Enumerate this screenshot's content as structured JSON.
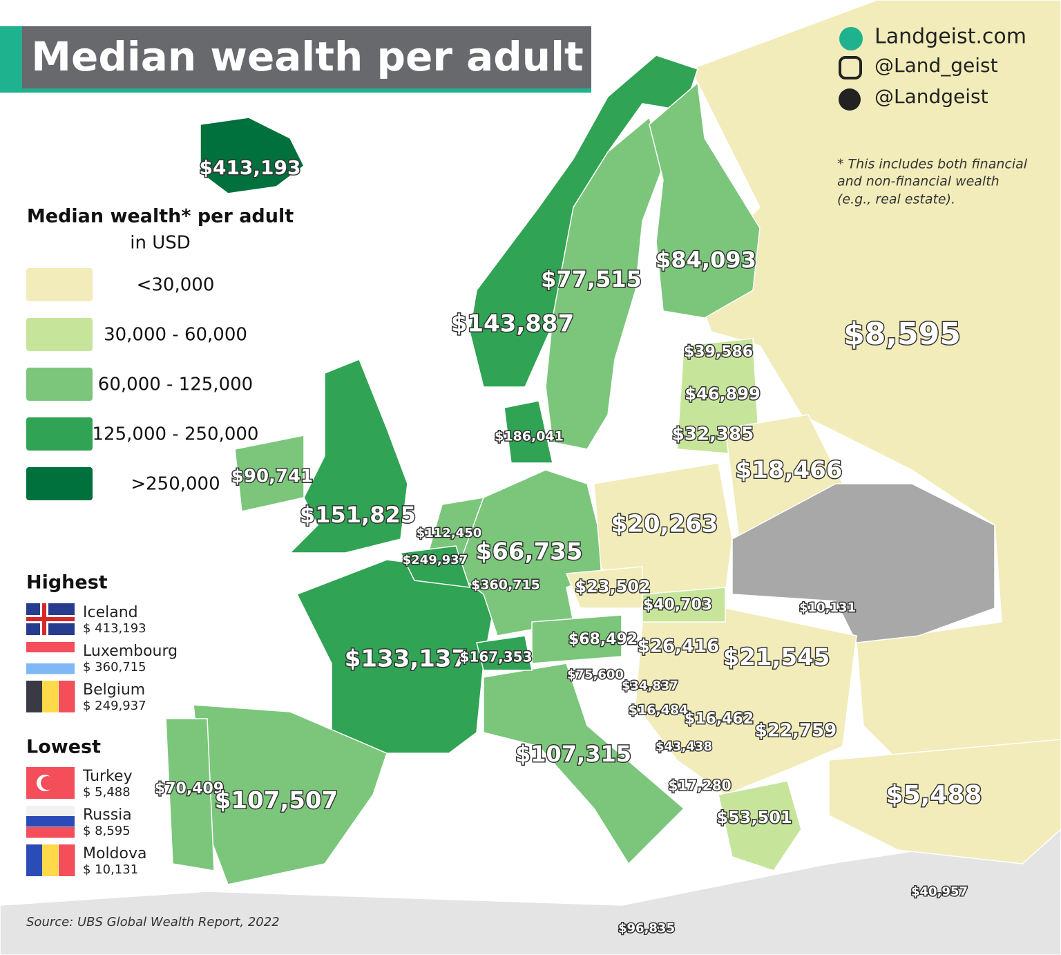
{
  "header": {
    "title": "Median wealth per adult"
  },
  "social": [
    "Landgeist.com",
    "@Land_geist",
    "@Landgeist"
  ],
  "note": [
    "* This includes both financial",
    "and non-financial wealth",
    "(e.g., real estate)."
  ],
  "legend": {
    "title": "Median wealth* per adult",
    "subtitle": "in USD",
    "items": [
      {
        "label": "<30,000",
        "color": "#f1ecb9"
      },
      {
        "label": "30,000 - 60,000",
        "color": "#c6e59b"
      },
      {
        "label": "60,000 - 125,000",
        "color": "#7bc67b"
      },
      {
        "label": "125,000 - 250,000",
        "color": "#30a354"
      },
      {
        "label": ">250,000",
        "color": "#00703c"
      }
    ]
  },
  "highest": {
    "title": "Highest",
    "items": [
      {
        "country": "Iceland",
        "value": "$ 413,193"
      },
      {
        "country": "Luxembourg",
        "value": "$ 360,715"
      },
      {
        "country": "Belgium",
        "value": "$ 249,937"
      }
    ]
  },
  "lowest": {
    "title": "Lowest",
    "items": [
      {
        "country": "Turkey",
        "value": "$ 5,488"
      },
      {
        "country": "Russia",
        "value": "$ 8,595"
      },
      {
        "country": "Moldova",
        "value": "$ 10,131"
      }
    ]
  },
  "map_labels": [
    "$413,193",
    "$77,515",
    "$84,093",
    "$143,887",
    "$8,595",
    "$39,586",
    "$46,899",
    "$32,385",
    "$186,041",
    "$18,466",
    "$90,741",
    "$151,825",
    "$20,263",
    "$112,450",
    "$66,735",
    "$249,937",
    "$360,715",
    "$23,502",
    "$40,703",
    "$10,131",
    "$68,492",
    "$26,416",
    "$21,545",
    "$133,137",
    "$167,353",
    "$75,600",
    "$34,837",
    "$16,484",
    "$16,462",
    "$22,759",
    "$43,438",
    "$107,315",
    "$17,280",
    "$70,409",
    "$107,507",
    "$53,501",
    "$5,488",
    "$40,957",
    "$96,835"
  ],
  "source": "Source: UBS Global Wealth Report, 2022"
}
